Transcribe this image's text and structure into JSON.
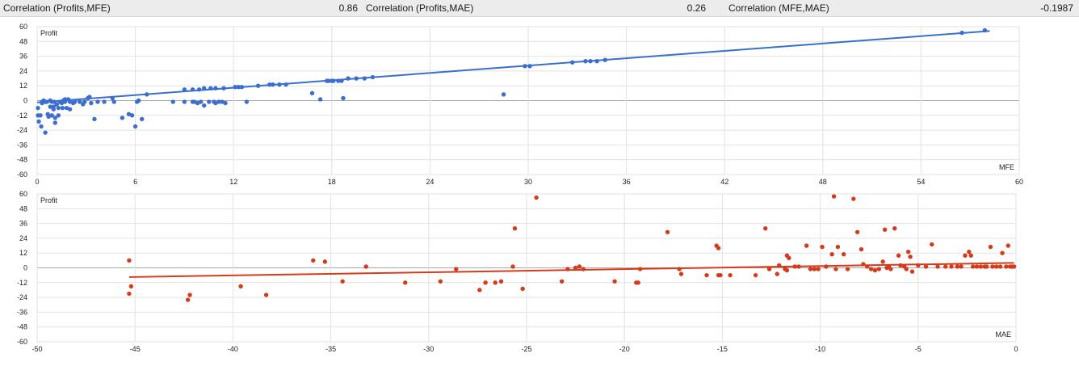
{
  "stats": [
    {
      "label": "Correlation (Profits,MFE)",
      "value": "0.86"
    },
    {
      "label": "Correlation (Profits,MAE)",
      "value": "0.26"
    },
    {
      "label": "Correlation (MFE,MAE)",
      "value": "-0.1987"
    }
  ],
  "chart_data": [
    {
      "type": "scatter",
      "xlabel": "MFE",
      "ylabel": "Profit",
      "xlim": [
        0,
        60
      ],
      "ylim": [
        -60,
        60
      ],
      "xticks": [
        0,
        6,
        12,
        18,
        24,
        30,
        36,
        42,
        48,
        54,
        60
      ],
      "yticks": [
        60,
        48,
        36,
        24,
        12,
        0,
        -12,
        -24,
        -36,
        -48,
        -60
      ],
      "grid": true,
      "color": "#3a6ecf",
      "trendline": {
        "x": [
          0,
          58.2
        ],
        "y": [
          -1.5,
          56.5
        ]
      },
      "points": [
        [
          0.05,
          -6
        ],
        [
          0.05,
          -12
        ],
        [
          0.1,
          -17
        ],
        [
          0.2,
          -12
        ],
        [
          0.25,
          -21
        ],
        [
          0.3,
          -2
        ],
        [
          0.3,
          -1
        ],
        [
          0.4,
          0
        ],
        [
          0.5,
          -1
        ],
        [
          0.5,
          -26
        ],
        [
          0.6,
          -1
        ],
        [
          0.65,
          -11
        ],
        [
          0.7,
          -13
        ],
        [
          0.8,
          0
        ],
        [
          0.8,
          -5
        ],
        [
          0.9,
          -12
        ],
        [
          0.9,
          -1
        ],
        [
          1,
          -5
        ],
        [
          1,
          -7
        ],
        [
          1.05,
          -1
        ],
        [
          1.1,
          -14
        ],
        [
          1.1,
          -18
        ],
        [
          1.2,
          -3
        ],
        [
          1.3,
          -12
        ],
        [
          1.3,
          -6
        ],
        [
          1.4,
          -1
        ],
        [
          1.5,
          -2
        ],
        [
          1.55,
          -6
        ],
        [
          1.6,
          0
        ],
        [
          1.7,
          1
        ],
        [
          1.7,
          -1
        ],
        [
          1.8,
          -6
        ],
        [
          1.9,
          1
        ],
        [
          2,
          -1
        ],
        [
          2,
          -7
        ],
        [
          2.2,
          -2
        ],
        [
          2.3,
          -1
        ],
        [
          2.6,
          -1
        ],
        [
          2.8,
          -3
        ],
        [
          2.9,
          -1
        ],
        [
          3.1,
          2
        ],
        [
          3.2,
          3
        ],
        [
          3.3,
          -2
        ],
        [
          3.5,
          -15
        ],
        [
          3.7,
          -1
        ],
        [
          4.1,
          -1
        ],
        [
          4.6,
          2
        ],
        [
          4.7,
          -1
        ],
        [
          5.2,
          -14
        ],
        [
          5.6,
          -11
        ],
        [
          5.8,
          -12
        ],
        [
          6,
          -21
        ],
        [
          6.1,
          -1
        ],
        [
          6.2,
          0
        ],
        [
          6.4,
          -15
        ],
        [
          6.7,
          5
        ],
        [
          8.3,
          -1
        ],
        [
          9,
          -1
        ],
        [
          9.5,
          -1
        ],
        [
          9.6,
          -1
        ],
        [
          9.8,
          -2
        ],
        [
          10,
          -1
        ],
        [
          10.5,
          -1
        ],
        [
          10.2,
          -4
        ],
        [
          10.8,
          -1
        ],
        [
          10.9,
          -2
        ],
        [
          11.1,
          -1
        ],
        [
          11.3,
          -1
        ],
        [
          11.5,
          -2
        ],
        [
          12.8,
          -1
        ],
        [
          9,
          9
        ],
        [
          9.5,
          9
        ],
        [
          9.9,
          9
        ],
        [
          10.2,
          10
        ],
        [
          10.6,
          10
        ],
        [
          10.9,
          10
        ],
        [
          11.4,
          10
        ],
        [
          12.1,
          11
        ],
        [
          12.3,
          11
        ],
        [
          12.5,
          11
        ],
        [
          13.5,
          12
        ],
        [
          14.2,
          13
        ],
        [
          14.4,
          13
        ],
        [
          14.8,
          13
        ],
        [
          15.2,
          13
        ],
        [
          16.8,
          6
        ],
        [
          17.3,
          1
        ],
        [
          17.7,
          16
        ],
        [
          17.8,
          16
        ],
        [
          18,
          16
        ],
        [
          18.1,
          16
        ],
        [
          18.4,
          16
        ],
        [
          18.6,
          16
        ],
        [
          19,
          18
        ],
        [
          19.5,
          18
        ],
        [
          20,
          18
        ],
        [
          20.5,
          19
        ],
        [
          18.7,
          2
        ],
        [
          28.5,
          5
        ],
        [
          29.8,
          28
        ],
        [
          30.1,
          28
        ],
        [
          32.7,
          31
        ],
        [
          33.5,
          32
        ],
        [
          33.8,
          32
        ],
        [
          34.2,
          32
        ],
        [
          34.7,
          33
        ],
        [
          56.5,
          55
        ],
        [
          57.9,
          57
        ]
      ]
    },
    {
      "type": "scatter",
      "xlabel": "MAE",
      "ylabel": "Profit",
      "xlim": [
        -50,
        0
      ],
      "ylim": [
        -60,
        60
      ],
      "xticks": [
        -50,
        -45,
        -40,
        -35,
        -30,
        -25,
        -20,
        -15,
        -10,
        -5,
        0
      ],
      "yticks": [
        60,
        48,
        36,
        24,
        12,
        0,
        -12,
        -24,
        -36,
        -48,
        -60
      ],
      "grid": true,
      "color": "#d53b1b",
      "trendline": {
        "x": [
          -45.3,
          -0.1
        ],
        "y": [
          -7.5,
          4
        ]
      },
      "points": [
        [
          -45.3,
          6
        ],
        [
          -45.2,
          -15
        ],
        [
          -45.3,
          -21
        ],
        [
          -42.2,
          -22
        ],
        [
          -42.3,
          -26
        ],
        [
          -39.6,
          -15
        ],
        [
          -38.3,
          -22
        ],
        [
          -35.9,
          6
        ],
        [
          -35.3,
          5
        ],
        [
          -34.4,
          -11
        ],
        [
          -33.2,
          1
        ],
        [
          -31.2,
          -12
        ],
        [
          -29.4,
          -11
        ],
        [
          -28.6,
          -1
        ],
        [
          -27.4,
          -18
        ],
        [
          -27.1,
          -12
        ],
        [
          -26.6,
          -12
        ],
        [
          -26.3,
          -11
        ],
        [
          -25.7,
          1
        ],
        [
          -25.6,
          32
        ],
        [
          -25.2,
          -17
        ],
        [
          -24.5,
          57
        ],
        [
          -23.2,
          -11
        ],
        [
          -22.9,
          -1
        ],
        [
          -22.5,
          0
        ],
        [
          -22.3,
          1
        ],
        [
          -22.1,
          -1
        ],
        [
          -20.5,
          -11
        ],
        [
          -19.4,
          -12
        ],
        [
          -19.2,
          -1
        ],
        [
          -19.3,
          -12
        ],
        [
          -17.8,
          29
        ],
        [
          -17.2,
          -1
        ],
        [
          -17.1,
          -5
        ],
        [
          -15.8,
          -6
        ],
        [
          -15.3,
          18
        ],
        [
          -15.2,
          -6
        ],
        [
          -15.1,
          -6
        ],
        [
          -15.2,
          16
        ],
        [
          -14.6,
          -6
        ],
        [
          -13.3,
          -6
        ],
        [
          -12.8,
          32
        ],
        [
          -12.6,
          -1
        ],
        [
          -12.2,
          -5
        ],
        [
          -12.1,
          2
        ],
        [
          -11.8,
          -1
        ],
        [
          -11.7,
          -2
        ],
        [
          -11.7,
          10
        ],
        [
          -11.6,
          8
        ],
        [
          -11.3,
          1
        ],
        [
          -11.1,
          1
        ],
        [
          -10.7,
          18
        ],
        [
          -10.5,
          -1
        ],
        [
          -10.3,
          -1
        ],
        [
          -10.1,
          -1
        ],
        [
          -9.9,
          17
        ],
        [
          -9.7,
          1
        ],
        [
          -9.4,
          11
        ],
        [
          -9.3,
          58
        ],
        [
          -9.1,
          17
        ],
        [
          -9.2,
          -1
        ],
        [
          -8.8,
          11
        ],
        [
          -8.6,
          -1
        ],
        [
          -8.3,
          56
        ],
        [
          -8.1,
          29
        ],
        [
          -7.9,
          15
        ],
        [
          -7.8,
          3
        ],
        [
          -7.6,
          1
        ],
        [
          -7.4,
          -1
        ],
        [
          -7.2,
          -2
        ],
        [
          -7.0,
          -1
        ],
        [
          -6.8,
          5
        ],
        [
          -6.7,
          31
        ],
        [
          -6.6,
          0
        ],
        [
          -6.5,
          1
        ],
        [
          -6.4,
          -1
        ],
        [
          -6.2,
          32
        ],
        [
          -6.0,
          10
        ],
        [
          -5.9,
          2
        ],
        [
          -5.7,
          1
        ],
        [
          -5.6,
          -1
        ],
        [
          -5.5,
          13
        ],
        [
          -5.4,
          9
        ],
        [
          -5.3,
          -3
        ],
        [
          -5.0,
          2
        ],
        [
          -4.6,
          1
        ],
        [
          -4.3,
          19
        ],
        [
          -4.0,
          1
        ],
        [
          -3.6,
          1
        ],
        [
          -3.3,
          1
        ],
        [
          -3.0,
          1
        ],
        [
          -2.8,
          1
        ],
        [
          -2.6,
          10
        ],
        [
          -2.4,
          13
        ],
        [
          -2.3,
          10
        ],
        [
          -2.2,
          1
        ],
        [
          -2.0,
          1
        ],
        [
          -1.8,
          1
        ],
        [
          -1.6,
          1
        ],
        [
          -1.5,
          1
        ],
        [
          -1.3,
          17
        ],
        [
          -1.2,
          1
        ],
        [
          -1.0,
          1
        ],
        [
          -0.8,
          1
        ],
        [
          -0.7,
          12
        ],
        [
          -0.5,
          1
        ],
        [
          -0.4,
          18
        ],
        [
          -0.3,
          1
        ],
        [
          -0.2,
          1
        ],
        [
          -0.1,
          1
        ]
      ]
    }
  ]
}
